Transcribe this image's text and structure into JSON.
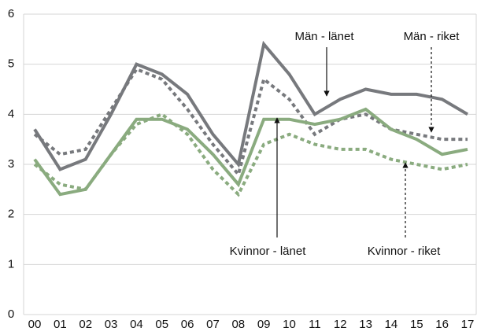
{
  "chart_data": {
    "type": "line",
    "categories": [
      "00",
      "01",
      "02",
      "03",
      "04",
      "05",
      "06",
      "07",
      "08",
      "09",
      "10",
      "11",
      "12",
      "13",
      "14",
      "15",
      "16",
      "17"
    ],
    "series": [
      {
        "name": "Män - länet",
        "color": "#77797d",
        "dash": false,
        "values": [
          3.7,
          2.9,
          3.1,
          4.0,
          5.0,
          4.8,
          4.4,
          3.6,
          3.0,
          5.4,
          4.8,
          4.0,
          4.3,
          4.5,
          4.4,
          4.4,
          4.3,
          4.0
        ]
      },
      {
        "name": "Män - riket",
        "color": "#77797d",
        "dash": true,
        "values": [
          3.6,
          3.2,
          3.3,
          4.1,
          4.9,
          4.7,
          4.1,
          3.4,
          2.8,
          4.7,
          4.3,
          3.6,
          3.9,
          4.0,
          3.7,
          3.6,
          3.5,
          3.5
        ]
      },
      {
        "name": "Kvinnor - länet",
        "color": "#8aab7f",
        "dash": false,
        "values": [
          3.1,
          2.4,
          2.5,
          3.2,
          3.9,
          3.9,
          3.7,
          3.2,
          2.6,
          3.9,
          3.9,
          3.8,
          3.9,
          4.1,
          3.7,
          3.5,
          3.2,
          3.3
        ]
      },
      {
        "name": "Kvinnor - riket",
        "color": "#8aab7f",
        "dash": true,
        "values": [
          3.0,
          2.6,
          2.5,
          3.2,
          3.8,
          4.0,
          3.6,
          2.9,
          2.4,
          3.4,
          3.6,
          3.4,
          3.3,
          3.3,
          3.1,
          3.0,
          2.9,
          3.0
        ]
      }
    ],
    "ylim": [
      0,
      6
    ],
    "yticks": [
      0,
      1,
      2,
      3,
      4,
      5,
      6
    ],
    "grid": true
  }
}
